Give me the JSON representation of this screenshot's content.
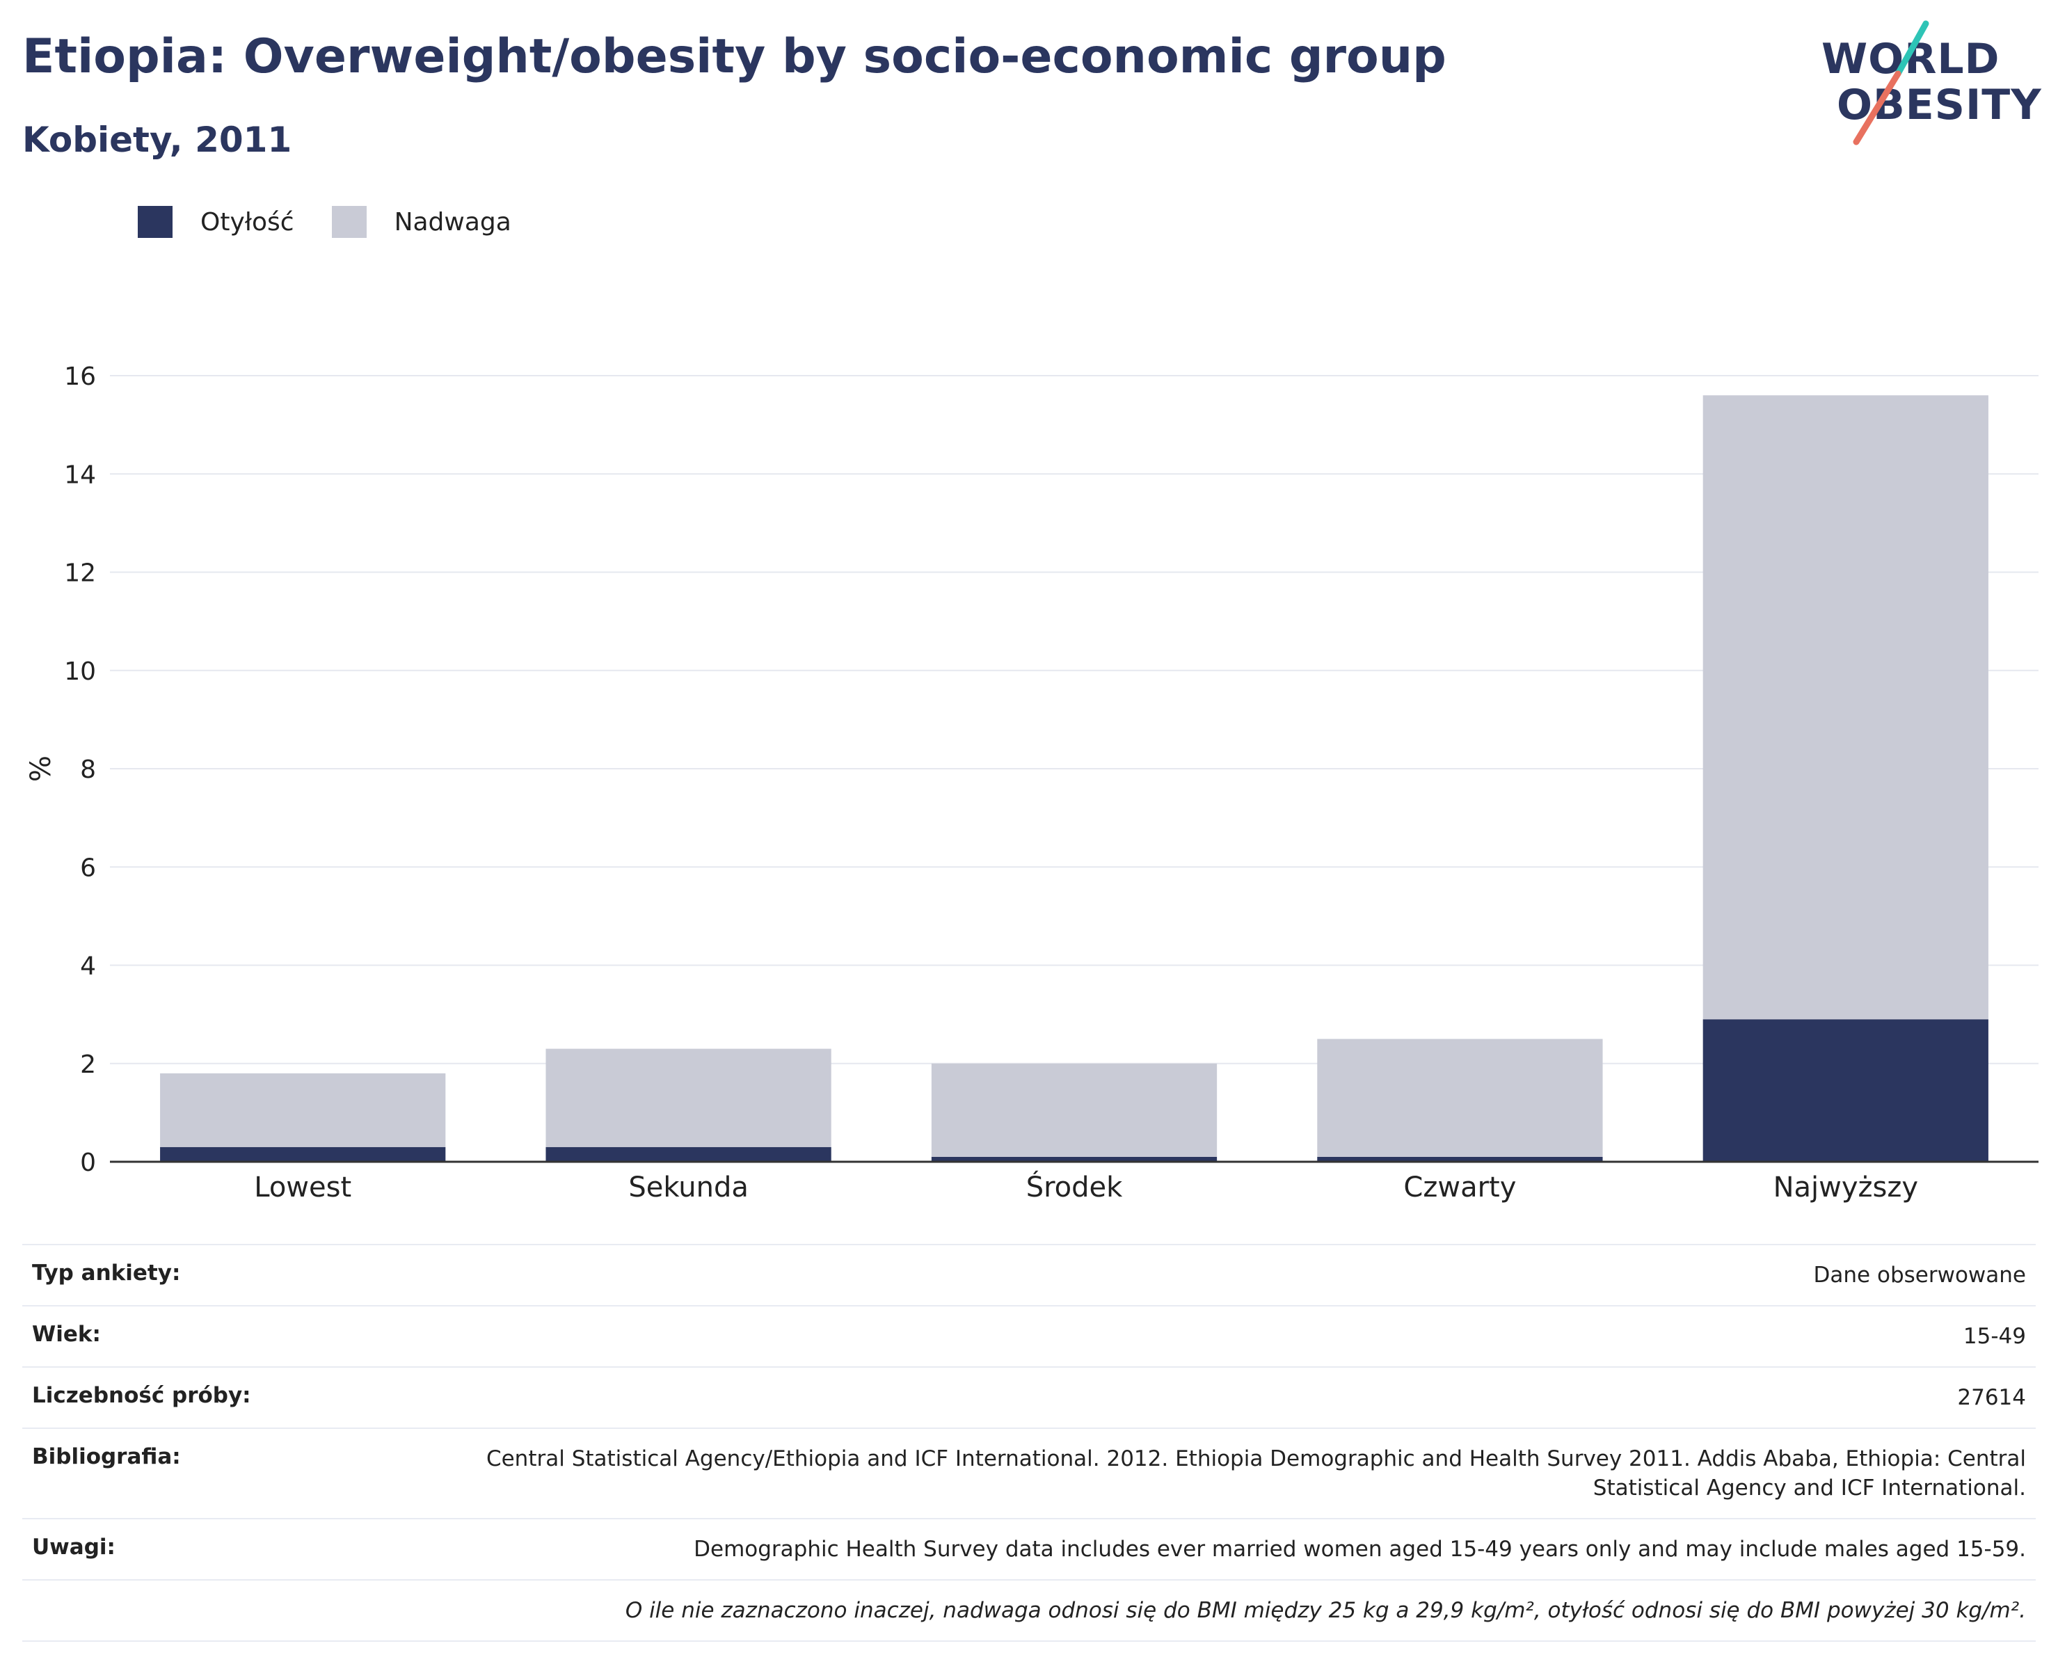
{
  "header": {
    "title": "Etiopia: Overweight/obesity by socio-economic group",
    "subtitle": "Kobiety, 2011"
  },
  "logo": {
    "line1": "WORLD",
    "line2": "OBESITY",
    "colors": {
      "text": "#2b365f",
      "slash_top": "#2ec4b6",
      "slash_bottom": "#e8715f"
    }
  },
  "legend": [
    {
      "label": "Otyłość",
      "color": "#2b365f"
    },
    {
      "label": "Nadwaga",
      "color": "#c9cbd6"
    }
  ],
  "chart_data": {
    "type": "bar",
    "stacked": true,
    "categories": [
      "Lowest",
      "Sekunda",
      "Środek",
      "Czwarty",
      "Najwyższy"
    ],
    "series": [
      {
        "name": "Otyłość",
        "color": "#2b365f",
        "values": [
          0.3,
          0.3,
          0.1,
          0.1,
          2.9
        ]
      },
      {
        "name": "Nadwaga",
        "color": "#c9cbd6",
        "values": [
          1.5,
          2.0,
          1.9,
          2.4,
          12.7
        ]
      }
    ],
    "ylabel": "%",
    "ylim": [
      0,
      16
    ],
    "yticks": [
      0,
      2,
      4,
      6,
      8,
      10,
      12,
      14,
      16
    ],
    "grid": true,
    "legend_position": "top-left"
  },
  "info": {
    "rows": [
      {
        "key": "Typ ankiety:",
        "value": "Dane obserwowane"
      },
      {
        "key": "Wiek:",
        "value": "15-49"
      },
      {
        "key": "Liczebność próby:",
        "value": "27614"
      },
      {
        "key": "Bibliografia:",
        "value": "Central Statistical Agency/Ethiopia and ICF International. 2012. Ethiopia Demographic and Health Survey 2011. Addis Ababa, Ethiopia: Central Statistical Agency and ICF International."
      },
      {
        "key": "Uwagi:",
        "value": "Demographic Health Survey data includes ever married women aged 15-49 years only and may include males aged 15-59."
      }
    ],
    "note": "O ile nie zaznaczono inaczej, nadwaga odnosi się do BMI między 25 kg a 29,9 kg/m², otyłość odnosi się do BMI powyżej 30 kg/m²."
  }
}
